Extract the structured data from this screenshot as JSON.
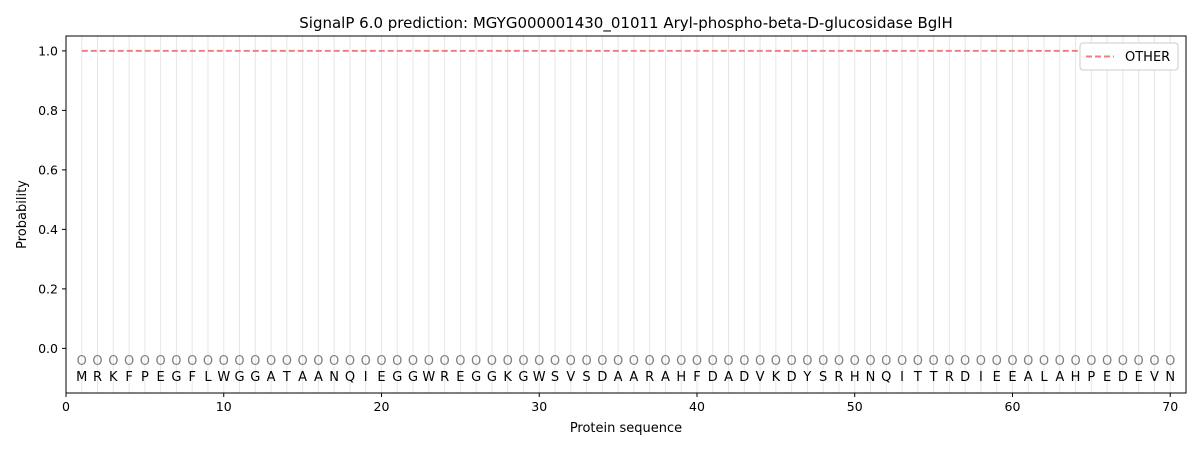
{
  "chart_data": {
    "type": "line",
    "title": "SignalP 6.0 prediction: MGYG000001430_01011 Aryl-phospho-beta-D-glucosidase BglH",
    "xlabel": "Protein sequence",
    "ylabel": "Probability",
    "xlim": [
      0,
      71
    ],
    "ylim": [
      -0.15,
      1.05
    ],
    "xticks": [
      0,
      10,
      20,
      30,
      40,
      50,
      60,
      70
    ],
    "yticks": [
      0.0,
      0.2,
      0.4,
      0.6,
      0.8,
      1.0
    ],
    "ytick_labels": [
      "0.0",
      "0.2",
      "0.4",
      "0.6",
      "0.8",
      "1.0"
    ],
    "sequence": [
      "M",
      "R",
      "K",
      "F",
      "P",
      "E",
      "G",
      "F",
      "L",
      "W",
      "G",
      "G",
      "A",
      "T",
      "A",
      "A",
      "N",
      "Q",
      "I",
      "E",
      "G",
      "G",
      "W",
      "R",
      "E",
      "G",
      "G",
      "K",
      "G",
      "W",
      "S",
      "V",
      "S",
      "D",
      "A",
      "A",
      "R",
      "A",
      "H",
      "F",
      "D",
      "A",
      "D",
      "V",
      "K",
      "D",
      "Y",
      "S",
      "R",
      "H",
      "N",
      "Q",
      "I",
      "T",
      "T",
      "R",
      "D",
      "I",
      "E",
      "E",
      "A",
      "L",
      "A",
      "H",
      "P",
      "E",
      "D",
      "E",
      "V",
      "N"
    ],
    "predicted_labels": [
      "O",
      "O",
      "O",
      "O",
      "O",
      "O",
      "O",
      "O",
      "O",
      "O",
      "O",
      "O",
      "O",
      "O",
      "O",
      "O",
      "O",
      "O",
      "O",
      "O",
      "O",
      "O",
      "O",
      "O",
      "O",
      "O",
      "O",
      "O",
      "O",
      "O",
      "O",
      "O",
      "O",
      "O",
      "O",
      "O",
      "O",
      "O",
      "O",
      "O",
      "O",
      "O",
      "O",
      "O",
      "O",
      "O",
      "O",
      "O",
      "O",
      "O",
      "O",
      "O",
      "O",
      "O",
      "O",
      "O",
      "O",
      "O",
      "O",
      "O",
      "O",
      "O",
      "O",
      "O",
      "O",
      "O",
      "O",
      "O",
      "O",
      "O"
    ],
    "series": [
      {
        "name": "OTHER",
        "color": "#f08080",
        "style": "dashed",
        "x_start": 1,
        "x_end": 70,
        "value": 1.0
      }
    ],
    "legend": {
      "position": "top-right",
      "entries": [
        "OTHER"
      ]
    },
    "grid": "vertical lines at each residue"
  }
}
